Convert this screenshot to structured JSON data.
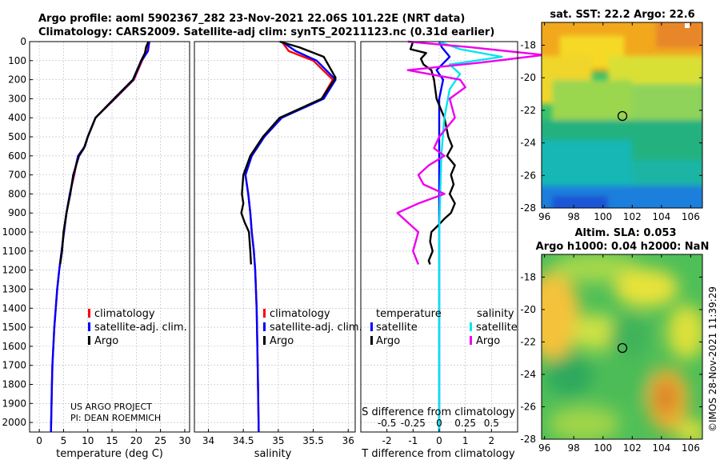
{
  "header": {
    "title_line1": "Argo profile: aoml 5902367_282 23-Nov-2021 22.06S 101.22E (NRT data)",
    "title_line2": "Climatology: CARS2009. Satellite-adj clim: synTS_20211123.nc (0.31d earlier)"
  },
  "colors": {
    "climatology": "#ff0000",
    "satellite": "#0000ff",
    "argo": "#000000",
    "satellite_t": "#0000ff",
    "satellite_s": "#00e5ee",
    "argo_s": "#ee00ee"
  },
  "credits": {
    "project": "US ARGO PROJECT",
    "pi": "PI: DEAN ROEMMICH"
  },
  "watermark": "©IMOS 28-Nov-2021 11:39:29",
  "chart_data": [
    {
      "id": "temperature",
      "type": "line",
      "xlabel": "temperature (deg C)",
      "ylabel": "",
      "xlim": [
        -2,
        31
      ],
      "ylim": [
        2050,
        0
      ],
      "xticks": [
        0,
        5,
        10,
        15,
        20,
        25,
        30
      ],
      "yticks": [
        0,
        100,
        200,
        300,
        400,
        500,
        600,
        700,
        800,
        900,
        1000,
        1100,
        1200,
        1300,
        1400,
        1500,
        1600,
        1700,
        1800,
        1900,
        2000
      ],
      "grid": true,
      "legend": {
        "position": "lower-right",
        "entries": [
          "climatology",
          "satellite-adj. clim.",
          "Argo"
        ]
      },
      "series": [
        {
          "name": "climatology",
          "color": "#ff0000",
          "x": [
            22.6,
            22.3,
            21.2,
            19.5,
            15.6,
            11.6,
            10.0,
            9.4,
            8.0,
            7.2,
            6.3,
            5.6,
            5.1,
            4.6,
            4.1,
            3.7,
            3.4,
            3.1,
            2.9,
            2.7,
            2.6,
            2.4
          ],
          "y": [
            0,
            50,
            100,
            200,
            300,
            400,
            500,
            550,
            600,
            700,
            800,
            900,
            1000,
            1100,
            1200,
            1300,
            1400,
            1500,
            1600,
            1700,
            1800,
            2050
          ]
        },
        {
          "name": "satellite-adj. clim.",
          "color": "#0000ff",
          "x": [
            22.7,
            22.4,
            21.1,
            19.4,
            15.5,
            11.6,
            10.0,
            9.4,
            8.0,
            7.1,
            6.3,
            5.6,
            5.1,
            4.6,
            4.1,
            3.7,
            3.4,
            3.1,
            2.9,
            2.7,
            2.6,
            2.4
          ],
          "y": [
            0,
            50,
            100,
            200,
            300,
            400,
            500,
            550,
            600,
            700,
            800,
            900,
            1000,
            1100,
            1200,
            1300,
            1400,
            1500,
            1600,
            1700,
            1800,
            2050
          ]
        },
        {
          "name": "Argo",
          "color": "#000000",
          "x": [
            22.5,
            22.0,
            21.8,
            21.0,
            19.3,
            15.4,
            11.6,
            10.0,
            9.2,
            8.2,
            7.0,
            6.4,
            5.6,
            5.0,
            4.7,
            4.3
          ],
          "y": [
            0,
            30,
            60,
            100,
            200,
            300,
            400,
            500,
            560,
            600,
            700,
            800,
            900,
            1000,
            1100,
            1170
          ]
        }
      ]
    },
    {
      "id": "salinity",
      "type": "line",
      "xlabel": "salinity",
      "ylabel": "",
      "xlim": [
        33.8,
        36.1
      ],
      "ylim": [
        2050,
        0
      ],
      "xticks": [
        34,
        34.5,
        35,
        35.5,
        36
      ],
      "xticklabels": [
        "34",
        "34.5",
        "35",
        "35.5",
        "36"
      ],
      "grid": true,
      "legend": {
        "position": "lower-right",
        "entries": [
          "climatology",
          "satellite-adj. clim.",
          "Argo"
        ]
      },
      "series": [
        {
          "name": "climatology",
          "color": "#ff0000",
          "x": [
            35.05,
            35.15,
            35.5,
            35.78,
            35.62,
            35.05,
            34.8,
            34.62,
            34.53,
            34.57,
            34.6,
            34.62,
            34.65,
            34.67,
            34.69,
            34.7,
            34.71,
            34.72
          ],
          "y": [
            0,
            50,
            100,
            200,
            300,
            400,
            500,
            600,
            700,
            800,
            900,
            1000,
            1100,
            1200,
            1400,
            1600,
            1800,
            2050
          ]
        },
        {
          "name": "satellite-adj. clim.",
          "color": "#0000ff",
          "x": [
            35.05,
            35.25,
            35.55,
            35.82,
            35.65,
            35.05,
            34.8,
            34.62,
            34.53,
            34.57,
            34.6,
            34.62,
            34.65,
            34.67,
            34.69,
            34.7,
            34.71,
            34.72
          ],
          "y": [
            0,
            50,
            100,
            200,
            300,
            400,
            500,
            600,
            700,
            800,
            900,
            1000,
            1100,
            1200,
            1400,
            1600,
            1800,
            2050
          ]
        },
        {
          "name": "Argo",
          "color": "#000000",
          "x": [
            35.02,
            35.3,
            35.65,
            35.82,
            35.62,
            35.02,
            34.78,
            34.6,
            34.5,
            34.48,
            34.5,
            34.47,
            34.52,
            34.58,
            34.6,
            34.61
          ],
          "y": [
            0,
            30,
            80,
            190,
            300,
            400,
            500,
            600,
            700,
            800,
            850,
            900,
            950,
            1000,
            1100,
            1170
          ]
        }
      ]
    },
    {
      "id": "difference",
      "type": "line",
      "xlabel": "T difference from climatology",
      "xlabel2": "S difference from climatology",
      "xlim": [
        -3,
        3
      ],
      "ylim": [
        2050,
        0
      ],
      "xticks": [
        -2,
        -1,
        0,
        1,
        2
      ],
      "xticklabels": [
        "-2",
        "-1",
        "0",
        "1",
        "2"
      ],
      "x2ticks": [
        -0.5,
        -0.25,
        0,
        0.25,
        0.5
      ],
      "x2ticklabels": [
        "-0.5",
        "-0.25",
        "0",
        "0.25",
        "0.5"
      ],
      "grid": true,
      "legend": {
        "position": "lower-center",
        "headers": [
          "temperature",
          "salinity"
        ],
        "entries": [
          "satellite",
          "Argo",
          "satellite",
          "Argo"
        ]
      },
      "series": [
        {
          "name": "temperature satellite",
          "color": "#0000ff",
          "x": [
            0,
            0.1,
            0.4,
            -0.1,
            0.15,
            0,
            0,
            0,
            0,
            0,
            0,
            0,
            0
          ],
          "y": [
            0,
            30,
            80,
            150,
            200,
            300,
            500,
            700,
            900,
            1100,
            1400,
            1700,
            2050
          ]
        },
        {
          "name": "temperature Argo",
          "color": "#000000",
          "x": [
            -1.0,
            -1.1,
            -0.5,
            -0.7,
            -0.6,
            -0.3,
            -0.2,
            -0.1,
            0.2,
            0.35,
            0.5,
            0.3,
            0.6,
            0.45,
            0.55,
            0.4,
            0.6,
            0.45,
            0.2,
            0.0,
            -0.3,
            -0.35,
            -0.25,
            -0.4,
            -0.35
          ],
          "y": [
            0,
            40,
            60,
            90,
            120,
            150,
            200,
            300,
            400,
            500,
            550,
            600,
            650,
            700,
            750,
            800,
            850,
            900,
            930,
            960,
            1000,
            1050,
            1100,
            1150,
            1170
          ]
        },
        {
          "name": "salinity satellite",
          "color": "#00e5ee",
          "x": [
            0,
            0.2,
            0.6,
            0.1,
            0.2,
            0.1,
            0.05,
            0.02,
            0.01,
            0,
            0,
            0,
            0,
            0,
            0
          ],
          "y": [
            0,
            40,
            80,
            120,
            170,
            250,
            400,
            600,
            800,
            1000,
            1100,
            1300,
            1600,
            1800,
            2050
          ]
        },
        {
          "name": "salinity Argo",
          "color": "#ee00ee",
          "x": [
            -0.3,
            0.3,
            1.0,
            0.4,
            -0.3,
            0.2,
            0.25,
            0.1,
            0.15,
            0.0,
            -0.05,
            0.05,
            -0.1,
            -0.2,
            -0.15,
            0.05,
            -0.2,
            -0.4,
            -0.3,
            -0.2,
            -0.25,
            -0.2
          ],
          "y": [
            0,
            30,
            70,
            110,
            150,
            200,
            240,
            300,
            400,
            500,
            560,
            600,
            650,
            700,
            750,
            800,
            850,
            900,
            950,
            1000,
            1100,
            1170
          ]
        }
      ]
    },
    {
      "id": "sst_map",
      "type": "heatmap",
      "title": "sat. SST: 22.2 Argo: 22.6",
      "xlim": [
        95.8,
        106.8
      ],
      "ylim": [
        -28,
        -16.6
      ],
      "xticks": [
        96,
        98,
        100,
        102,
        104,
        106
      ],
      "yticks": [
        -18,
        -20,
        -22,
        -24,
        -26,
        -28
      ],
      "marker": {
        "lon": 101.22,
        "lat": -22.06
      }
    },
    {
      "id": "sla_map",
      "type": "heatmap",
      "title": "Altim. SLA: 0.053",
      "subtitle": "Argo h1000: 0.04 h2000: NaN",
      "xlim": [
        95.8,
        106.8
      ],
      "ylim": [
        -28,
        -16.6
      ],
      "xticks": [
        96,
        98,
        100,
        102,
        104,
        106
      ],
      "yticks": [
        -18,
        -20,
        -22,
        -24,
        -26,
        -28
      ],
      "marker": {
        "lon": 101.22,
        "lat": -22.06
      }
    }
  ]
}
